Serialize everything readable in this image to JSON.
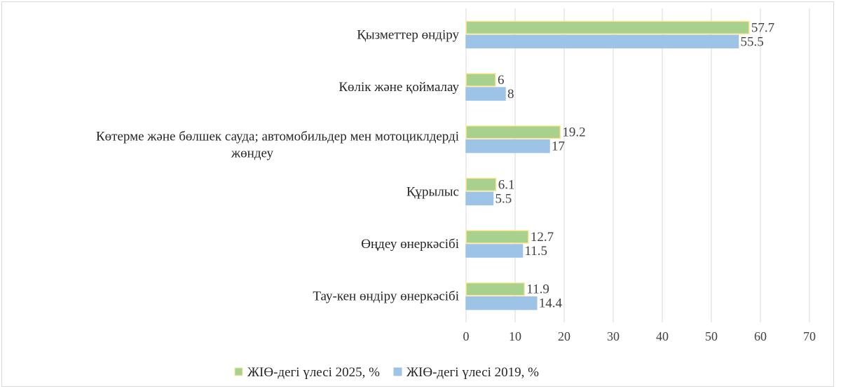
{
  "chart_data": {
    "type": "bar",
    "orientation": "horizontal",
    "categories": [
      "Қызметтер өндіру",
      "Көлік және қоймалау",
      "Көтерме және бөлшек сауда; автомобильдер мен мотоциклдерді жөндеу",
      "Құрылыс",
      "Өңдеу өнеркәсібі",
      "Тау-кен өндіру өнеркәсібі"
    ],
    "category_lines": [
      [
        "Қызметтер өндіру"
      ],
      [
        "Көлік және қоймалау"
      ],
      [
        "Көтерме және бөлшек сауда; автомобильдер мен мотоциклдерді",
        "жөндеу"
      ],
      [
        "Құрылыс"
      ],
      [
        "Өңдеу өнеркәсібі"
      ],
      [
        "Тау-кен өндіру өнеркәсібі"
      ]
    ],
    "series": [
      {
        "name": "ЖІӨ-дегі үлесі 2025, %",
        "color": "#a9d18e",
        "border": "#ffe699",
        "values": [
          57.7,
          6,
          19.2,
          6.1,
          12.7,
          11.9
        ],
        "labels": [
          "57.7",
          "6",
          "19.2",
          "6.1",
          "12.7",
          "11.9"
        ]
      },
      {
        "name": "ЖІӨ-дегі үлесі 2019, %",
        "color": "#9dc3e6",
        "border": "#9dc3e6",
        "values": [
          55.5,
          8,
          17,
          5.5,
          11.5,
          14.4
        ],
        "labels": [
          "55.5",
          "8",
          "17",
          "5.5",
          "11.5",
          "14.4"
        ]
      }
    ],
    "xlim": [
      0,
      70
    ],
    "xticks": [
      "0",
      "10",
      "20",
      "30",
      "40",
      "50",
      "60",
      "70"
    ],
    "grid": true,
    "legend": "bottom",
    "title": "",
    "xlabel": "",
    "ylabel": ""
  }
}
